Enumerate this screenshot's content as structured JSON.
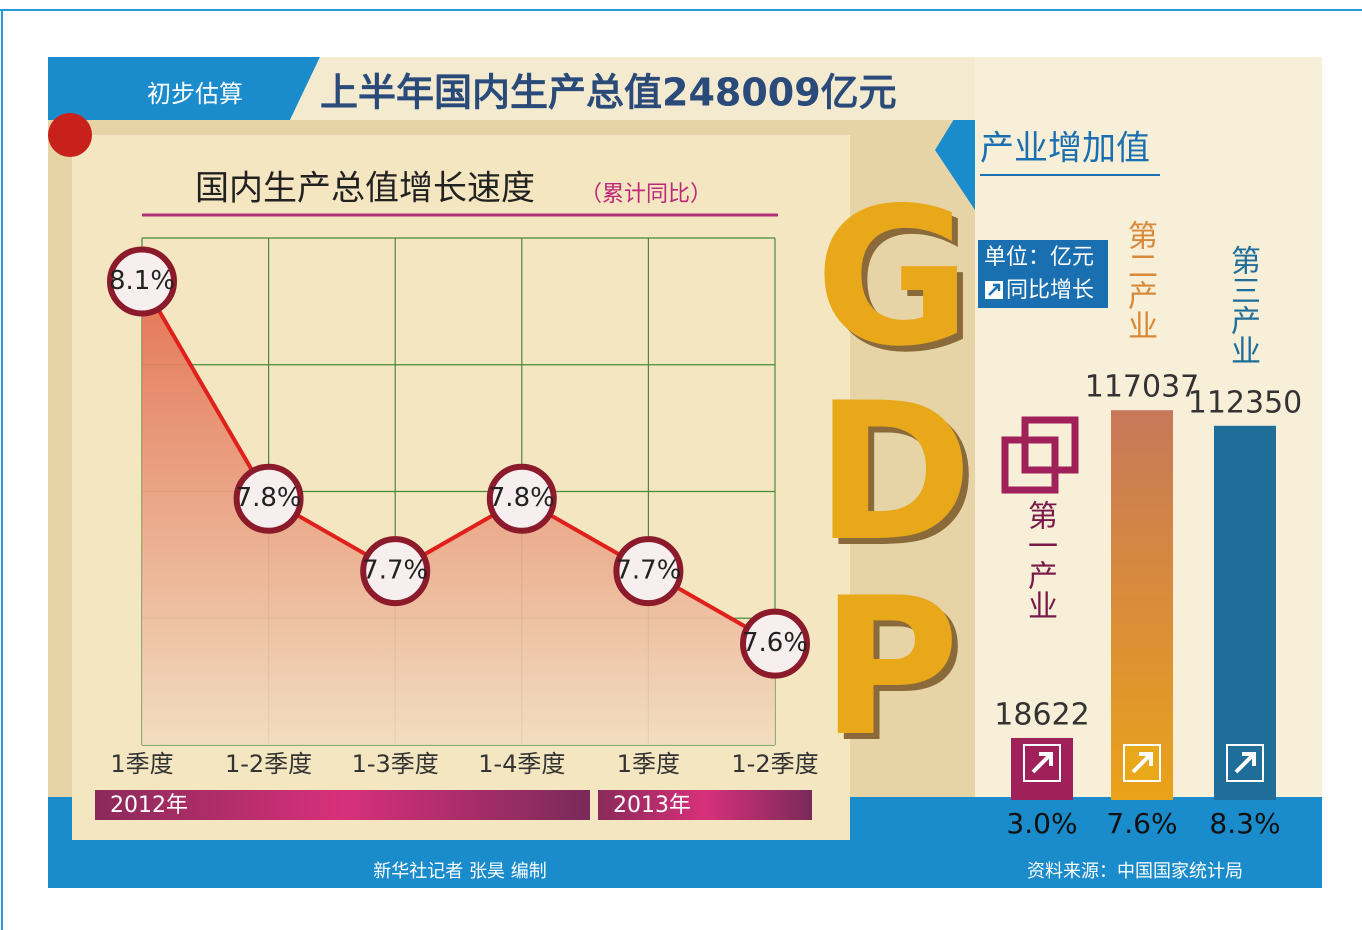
{
  "header": {
    "tag": "初步估算",
    "title": "上半年国内生产总值248009亿元"
  },
  "logo": "GDP",
  "footer": {
    "credit": "新华社记者 张昊 编制",
    "source": "资料来源：中国国家统计局"
  },
  "chart_data": [
    {
      "type": "line",
      "title": "国内生产总值增长速度",
      "subtitle": "（累计同比）",
      "categories": [
        "1季度",
        "1-2季度",
        "1-3季度",
        "1-4季度",
        "1季度",
        "1-2季度"
      ],
      "years": [
        "2012年",
        "2013年"
      ],
      "values": [
        8.1,
        7.8,
        7.7,
        7.8,
        7.7,
        7.6
      ],
      "value_labels": [
        "8.1%",
        "7.8%",
        "7.7%",
        "7.8%",
        "7.7%",
        "7.6%"
      ],
      "color": "#e0201a",
      "ylim": [
        7.46,
        8.16
      ],
      "grid": true
    },
    {
      "type": "bar",
      "title": "产业增加值",
      "unit": "单位：亿元",
      "categories": [
        "第一产业",
        "第二产业",
        "第三产业"
      ],
      "values": [
        18622,
        117037,
        112350
      ],
      "colors": [
        "#a0205a",
        "#d88a3a",
        "#1f6e99"
      ],
      "growth": {
        "name": "同比增长",
        "values": [
          3.0,
          7.6,
          8.3
        ],
        "value_labels": [
          "3.0%",
          "7.6%",
          "8.3%"
        ]
      },
      "ylim": [
        0,
        130000
      ]
    }
  ]
}
